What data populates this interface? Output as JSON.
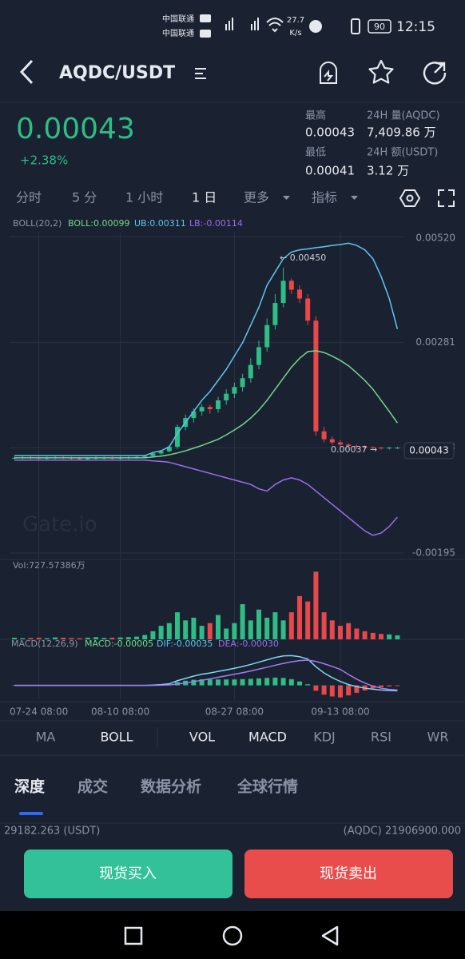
{
  "status": {
    "carrier1": "中国联通",
    "carrier2": "中国联通",
    "speed": "27.7",
    "speed_unit": "K/s",
    "battery": "90",
    "time": "12:15"
  },
  "header": {
    "pair": "AQDC/USDT"
  },
  "ticker": {
    "price": "0.00043",
    "change": "+2.38%",
    "high_label": "最高",
    "high": "0.00043",
    "low_label": "最低",
    "low": "0.00041",
    "vol_label": "24H 量(AQDC)",
    "vol": "7,409.86 万",
    "amt_label": "24H 额(USDT)",
    "amt": "3.12 万"
  },
  "intervals": [
    "分时",
    "5 分",
    "1 小时",
    "1 日",
    "更多",
    "指标"
  ],
  "chart_data": {
    "type": "candlestick",
    "categories": [
      null,
      null,
      null,
      "07-24 08:00",
      null,
      null,
      null,
      null,
      null,
      null,
      null,
      null,
      null,
      "08-10 08:00",
      null,
      null,
      null,
      null,
      null,
      null,
      null,
      null,
      null,
      null,
      null,
      null,
      null,
      "08-27 08:00",
      null,
      null,
      null,
      null,
      null,
      null,
      null,
      null,
      null,
      null,
      null,
      null,
      "09-13 08:00",
      null,
      null,
      null,
      null,
      null,
      null,
      null
    ],
    "open": [
      0.0002,
      0.0002,
      0.00021,
      0.0002,
      0.00019,
      0.0002,
      0.00021,
      0.0002,
      0.00019,
      0.00018,
      0.00019,
      0.0002,
      0.0002,
      0.00019,
      0.0002,
      0.00021,
      0.00022,
      0.00024,
      0.0003,
      0.00035,
      0.00045,
      0.0009,
      0.0011,
      0.00125,
      0.00135,
      0.0013,
      0.0015,
      0.00165,
      0.0018,
      0.002,
      0.0023,
      0.0027,
      0.0032,
      0.0037,
      0.0042,
      0.004,
      0.0038,
      0.0033,
      0.0008,
      0.00062,
      0.00055,
      0.0005,
      0.00047,
      0.00045,
      0.00044,
      0.00043,
      0.00042,
      0.00043
    ],
    "high": [
      0.00023,
      0.00024,
      0.00024,
      0.00023,
      0.00023,
      0.00024,
      0.00024,
      0.00023,
      0.00022,
      0.00022,
      0.00023,
      0.00023,
      0.00023,
      0.00023,
      0.00024,
      0.00025,
      0.00027,
      0.00033,
      0.00038,
      0.00048,
      0.00095,
      0.00118,
      0.00132,
      0.00142,
      0.0014,
      0.00158,
      0.00175,
      0.0019,
      0.0021,
      0.00245,
      0.00285,
      0.00335,
      0.0039,
      0.0045,
      0.00425,
      0.0041,
      0.0039,
      0.0034,
      0.0009,
      0.00068,
      0.0006,
      0.00053,
      0.0005,
      0.00048,
      0.00046,
      0.00045,
      0.00045,
      0.00045
    ],
    "low": [
      0.00017,
      0.00017,
      0.00017,
      0.00016,
      0.00016,
      0.00017,
      0.00017,
      0.00016,
      0.00015,
      0.00015,
      0.00016,
      0.00017,
      0.00016,
      0.00016,
      0.00017,
      0.00018,
      0.00019,
      0.00021,
      0.00027,
      0.00032,
      0.0004,
      0.00082,
      0.001,
      0.00115,
      0.0012,
      0.00122,
      0.0014,
      0.00155,
      0.0017,
      0.0019,
      0.0022,
      0.0026,
      0.0031,
      0.0036,
      0.0039,
      0.0037,
      0.0032,
      0.0007,
      0.00055,
      0.0005,
      0.00045,
      0.00042,
      0.0004,
      0.0004,
      0.00037,
      0.00039,
      0.00039,
      0.0004
    ],
    "close": [
      0.0002,
      0.00021,
      0.0002,
      0.00019,
      0.0002,
      0.00021,
      0.0002,
      0.00019,
      0.00018,
      0.00019,
      0.0002,
      0.0002,
      0.00019,
      0.0002,
      0.00021,
      0.00022,
      0.00024,
      0.0003,
      0.00035,
      0.00045,
      0.0009,
      0.0011,
      0.00125,
      0.00135,
      0.0013,
      0.0015,
      0.00165,
      0.0018,
      0.002,
      0.0023,
      0.0027,
      0.0032,
      0.0037,
      0.0042,
      0.004,
      0.0038,
      0.0033,
      0.0008,
      0.00062,
      0.00055,
      0.0005,
      0.00047,
      0.00045,
      0.00044,
      0.00043,
      0.00042,
      0.00043,
      0.00043
    ],
    "up_color": "#2ebd85",
    "down_color": "#e8484a",
    "boll_upper": {
      "color": "#5ec6f2",
      "values": [
        0.00025,
        0.00025,
        0.00025,
        0.00025,
        0.00025,
        0.00025,
        0.00025,
        0.00025,
        0.00025,
        0.00025,
        0.00025,
        0.00025,
        0.00025,
        0.00025,
        0.00025,
        0.00025,
        0.00025,
        0.00032,
        0.00036,
        0.00045,
        0.00075,
        0.001,
        0.00125,
        0.0015,
        0.0017,
        0.00195,
        0.0022,
        0.0025,
        0.0028,
        0.0032,
        0.0036,
        0.0041,
        0.0044,
        0.0047,
        0.00485,
        0.0049,
        0.00492,
        0.00495,
        0.00497,
        0.005,
        0.00502,
        0.00505,
        0.005,
        0.0049,
        0.0047,
        0.0043,
        0.0038,
        0.00311
      ]
    },
    "boll_mid": {
      "color": "#74d98c",
      "values": [
        0.0002,
        0.0002,
        0.0002,
        0.0002,
        0.0002,
        0.0002,
        0.0002,
        0.0002,
        0.0002,
        0.0002,
        0.0002,
        0.0002,
        0.0002,
        0.0002,
        0.0002,
        0.0002,
        0.0002,
        0.00022,
        0.00024,
        0.00027,
        0.00031,
        0.00036,
        0.00042,
        0.00048,
        0.00055,
        0.00062,
        0.00072,
        0.00083,
        0.00095,
        0.0011,
        0.00128,
        0.0015,
        0.00175,
        0.002,
        0.00225,
        0.00245,
        0.0026,
        0.00262,
        0.00258,
        0.0025,
        0.0024,
        0.00228,
        0.00212,
        0.00195,
        0.00175,
        0.0015,
        0.00125,
        0.00099
      ]
    },
    "boll_lower": {
      "color": "#9b6ef0",
      "values": [
        0.00015,
        0.00015,
        0.00015,
        0.00015,
        0.00015,
        0.00015,
        0.00015,
        0.00015,
        0.00015,
        0.00015,
        0.00015,
        0.00015,
        0.00015,
        0.00015,
        0.00015,
        0.00015,
        0.00015,
        0.00013,
        0.00012,
        0.0001,
        5e-05,
        0.0,
        -5e-05,
        -0.0001,
        -0.00015,
        -0.0002,
        -0.00025,
        -0.0003,
        -0.00035,
        -0.0004,
        -0.0005,
        -0.00055,
        -0.0004,
        -0.0003,
        -0.00025,
        -0.0003,
        -0.0004,
        -0.00055,
        -0.0007,
        -0.00085,
        -0.001,
        -0.00115,
        -0.0013,
        -0.00145,
        -0.00155,
        -0.0015,
        -0.00135,
        -0.00114
      ]
    },
    "ylim": [
      -0.00195,
      0.0052
    ],
    "yticks": [
      {
        "value": 0.0052,
        "label": "0.00520"
      },
      {
        "value": 0.00281,
        "label": "0.00281"
      },
      {
        "value": 0.00043,
        "label": "0.00043"
      },
      {
        "value": -0.00195,
        "label": "-0.00195"
      }
    ],
    "grid": true,
    "high_note": "← 0.00450",
    "low_note": "0.00037 →",
    "last_label": "0.00043",
    "watermark": "Gate.io",
    "boll_legend": [
      "BOLL(20,2)",
      "BOLL:0.00099",
      "UB:0.00311",
      "LB:-0.00114"
    ],
    "vol_legend": "Vol:727.57386万",
    "volume": [
      300,
      200,
      250,
      300,
      200,
      350,
      300,
      250,
      200,
      300,
      400,
      250,
      300,
      350,
      400,
      500,
      800,
      1500,
      2500,
      3000,
      5000,
      3500,
      4000,
      2500,
      3000,
      4500,
      2000,
      3000,
      6500,
      3500,
      5500,
      4000,
      5000,
      3500,
      5000,
      8000,
      7000,
      12500,
      5000,
      3500,
      2500,
      3000,
      2000,
      1500,
      1200,
      1000,
      900,
      727.57386
    ],
    "vol_ylim": [
      0,
      13000
    ],
    "macd_legend": [
      "MACD(12,26,9)",
      "MACD:-0.00005",
      "DIF:-0.00035",
      "DEA:-0.00030"
    ],
    "macd": [
      0,
      0,
      0,
      0,
      0,
      0,
      0,
      0,
      0,
      0,
      0,
      0,
      0,
      0,
      0,
      0,
      0,
      2e-05,
      4e-05,
      7e-05,
      0.00022,
      0.0003,
      0.00036,
      0.00039,
      0.00038,
      0.00038,
      0.00038,
      0.00038,
      0.0004,
      0.00042,
      0.00045,
      0.00048,
      0.0005,
      0.00048,
      0.0004,
      0.00025,
      7e-05,
      -0.00035,
      -0.0006,
      -0.00072,
      -0.00078,
      -0.00065,
      -0.00048,
      -0.00033,
      -0.0002,
      -0.00012,
      -7e-05,
      -5e-05
    ],
    "dif": {
      "color": "#7fd6f5",
      "values": [
        0,
        0,
        0,
        0,
        0,
        0,
        0,
        0,
        0,
        0,
        0,
        0,
        0,
        0,
        0,
        0,
        0,
        2e-05,
        5e-05,
        0.0001,
        0.0003,
        0.00045,
        0.0006,
        0.00072,
        0.0008,
        0.0009,
        0.001,
        0.0011,
        0.00122,
        0.00135,
        0.0015,
        0.00165,
        0.0018,
        0.0019,
        0.00192,
        0.00185,
        0.0017,
        0.0012,
        0.0008,
        0.0005,
        0.00025,
        5e-05,
        -8e-05,
        -0.00018,
        -0.00025,
        -0.0003,
        -0.00033,
        -0.00035
      ]
    },
    "dea": {
      "color": "#a27cf2",
      "values": [
        0,
        0,
        0,
        0,
        0,
        0,
        0,
        0,
        0,
        0,
        0,
        0,
        0,
        0,
        0,
        0,
        0,
        0,
        1e-05,
        3e-05,
        8e-05,
        0.00015,
        0.00024,
        0.00033,
        0.00042,
        0.00052,
        0.00062,
        0.00072,
        0.00082,
        0.00093,
        0.00105,
        0.00117,
        0.0013,
        0.00142,
        0.00152,
        0.0016,
        0.00163,
        0.00155,
        0.0014,
        0.00122,
        0.00103,
        0.0007,
        0.0004,
        0.00015,
        -5e-05,
        -0.00018,
        -0.00026,
        -0.0003
      ]
    },
    "macd_ylim": [
      -0.0009,
      0.0022
    ]
  },
  "indicators": [
    "MA",
    "BOLL",
    "VOL",
    "MACD",
    "KDJ",
    "RSI",
    "WR"
  ],
  "tabs": [
    "深度",
    "成交",
    "数据分析",
    "全球行情"
  ],
  "depth": {
    "left": "29182.263 (USDT)",
    "right": "(AQDC) 21906900.000"
  },
  "buttons": {
    "buy": "现货买入",
    "sell": "现货卖出"
  }
}
